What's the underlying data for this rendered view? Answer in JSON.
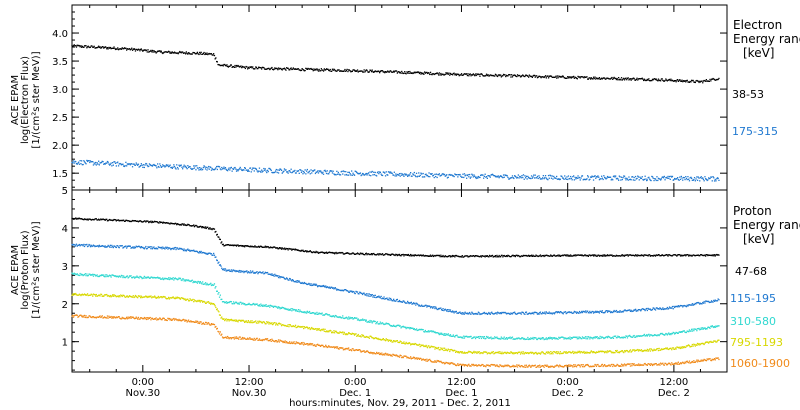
{
  "chart_data": {
    "type": "scatter",
    "x_label": "hours:minutes, Nov. 29, 2011 - Dec. 2, 2011",
    "x_range": [
      "2011-11-29T16:00",
      "2011-12-02T18:00"
    ],
    "x_ticks": [
      {
        "t": "2011-11-30T00:00",
        "time": "0:00",
        "date": "Nov.30"
      },
      {
        "t": "2011-11-30T12:00",
        "time": "12:00",
        "date": "Nov.30"
      },
      {
        "t": "2011-12-01T00:00",
        "time": "0:00",
        "date": "Dec. 1"
      },
      {
        "t": "2011-12-01T12:00",
        "time": "12:00",
        "date": "Dec. 1"
      },
      {
        "t": "2011-12-02T00:00",
        "time": "0:00",
        "date": "Dec. 2"
      },
      {
        "t": "2011-12-02T12:00",
        "time": "12:00",
        "date": "Dec. 2"
      }
    ],
    "panels": [
      {
        "id": "electron",
        "ylabel_lines": [
          "ACE EPAM",
          "log(Electron Flux)",
          "[1/(cm²s ster MeV)]"
        ],
        "ylim": [
          1.2,
          4.5
        ],
        "y_ticks": [
          "1.5",
          "2.0",
          "2.5",
          "3.0",
          "3.5",
          "4.0"
        ],
        "legend_title": [
          "Electron",
          "Energy ranges"
        ],
        "legend_unit": "[keV]",
        "series": [
          {
            "name": "38-53",
            "color": "#000000",
            "noise": 0.022,
            "points": [
              [
                "2011-11-29T16:00",
                3.77
              ],
              [
                "2011-11-29T22:00",
                3.72
              ],
              [
                "2011-11-30T02:00",
                3.66
              ],
              [
                "2011-11-30T06:00",
                3.64
              ],
              [
                "2011-11-30T08:00",
                3.62
              ],
              [
                "2011-11-30T08:30",
                3.43
              ],
              [
                "2011-11-30T12:00",
                3.38
              ],
              [
                "2011-11-30T18:00",
                3.35
              ],
              [
                "2011-12-01T00:00",
                3.33
              ],
              [
                "2011-12-01T12:00",
                3.26
              ],
              [
                "2011-12-02T00:00",
                3.21
              ],
              [
                "2011-12-02T10:00",
                3.17
              ],
              [
                "2011-12-02T15:00",
                3.13
              ],
              [
                "2011-12-02T17:00",
                3.19
              ]
            ]
          },
          {
            "name": "175-315",
            "color": "#1f78d0",
            "noise": 0.04,
            "points": [
              [
                "2011-11-29T16:00",
                1.7
              ],
              [
                "2011-11-30T06:00",
                1.6
              ],
              [
                "2011-11-30T12:00",
                1.56
              ],
              [
                "2011-12-01T00:00",
                1.5
              ],
              [
                "2011-12-01T12:00",
                1.45
              ],
              [
                "2011-12-02T00:00",
                1.42
              ],
              [
                "2011-12-02T17:00",
                1.4
              ]
            ]
          }
        ]
      },
      {
        "id": "proton",
        "ylabel_lines": [
          "ACE EPAM",
          "log(Proton Flux)",
          "[1/(cm²s ster MeV)]"
        ],
        "ylim": [
          0.2,
          5.0
        ],
        "y_ticks": [
          "1",
          "2",
          "3",
          "4",
          "5"
        ],
        "legend_title": [
          "Proton",
          "Energy ranges"
        ],
        "legend_unit": "[keV]",
        "series": [
          {
            "name": "47-68",
            "color": "#000000",
            "noise": 0.02,
            "points": [
              [
                "2011-11-29T16:00",
                4.25
              ],
              [
                "2011-11-30T02:00",
                4.15
              ],
              [
                "2011-11-30T06:00",
                4.05
              ],
              [
                "2011-11-30T08:00",
                3.97
              ],
              [
                "2011-11-30T09:00",
                3.55
              ],
              [
                "2011-11-30T14:00",
                3.5
              ],
              [
                "2011-11-30T20:00",
                3.35
              ],
              [
                "2011-12-01T06:00",
                3.28
              ],
              [
                "2011-12-01T12:00",
                3.25
              ],
              [
                "2011-12-02T00:00",
                3.27
              ],
              [
                "2011-12-02T17:00",
                3.28
              ]
            ]
          },
          {
            "name": "115-195",
            "color": "#1f78d0",
            "noise": 0.03,
            "points": [
              [
                "2011-11-29T16:00",
                3.55
              ],
              [
                "2011-11-30T04:00",
                3.45
              ],
              [
                "2011-11-30T08:00",
                3.3
              ],
              [
                "2011-11-30T09:00",
                2.9
              ],
              [
                "2011-11-30T14:00",
                2.8
              ],
              [
                "2011-11-30T18:00",
                2.55
              ],
              [
                "2011-12-01T00:00",
                2.3
              ],
              [
                "2011-12-01T12:00",
                1.75
              ],
              [
                "2011-12-01T20:00",
                1.75
              ],
              [
                "2011-12-02T06:00",
                1.8
              ],
              [
                "2011-12-02T12:00",
                1.9
              ],
              [
                "2011-12-02T17:00",
                2.1
              ]
            ]
          },
          {
            "name": "310-580",
            "color": "#30d8d0",
            "noise": 0.03,
            "points": [
              [
                "2011-11-29T16:00",
                2.78
              ],
              [
                "2011-11-30T04:00",
                2.65
              ],
              [
                "2011-11-30T08:00",
                2.5
              ],
              [
                "2011-11-30T09:00",
                2.05
              ],
              [
                "2011-11-30T14:00",
                1.95
              ],
              [
                "2011-11-30T18:00",
                1.8
              ],
              [
                "2011-12-01T00:00",
                1.6
              ],
              [
                "2011-12-01T12:00",
                1.12
              ],
              [
                "2011-12-01T20:00",
                1.08
              ],
              [
                "2011-12-02T06:00",
                1.12
              ],
              [
                "2011-12-02T12:00",
                1.22
              ],
              [
                "2011-12-02T17:00",
                1.42
              ]
            ]
          },
          {
            "name": "795-1193",
            "color": "#d8d800",
            "noise": 0.03,
            "points": [
              [
                "2011-11-29T16:00",
                2.25
              ],
              [
                "2011-11-30T04:00",
                2.15
              ],
              [
                "2011-11-30T08:00",
                2.0
              ],
              [
                "2011-11-30T09:00",
                1.58
              ],
              [
                "2011-11-30T14:00",
                1.5
              ],
              [
                "2011-11-30T18:00",
                1.38
              ],
              [
                "2011-12-01T00:00",
                1.18
              ],
              [
                "2011-12-01T12:00",
                0.72
              ],
              [
                "2011-12-01T20:00",
                0.7
              ],
              [
                "2011-12-02T06:00",
                0.74
              ],
              [
                "2011-12-02T12:00",
                0.82
              ],
              [
                "2011-12-02T17:00",
                1.02
              ]
            ]
          },
          {
            "name": "1060-1900",
            "color": "#f08a1a",
            "noise": 0.03,
            "points": [
              [
                "2011-11-29T16:00",
                1.68
              ],
              [
                "2011-11-30T04:00",
                1.58
              ],
              [
                "2011-11-30T08:00",
                1.45
              ],
              [
                "2011-11-30T09:00",
                1.12
              ],
              [
                "2011-11-30T14:00",
                1.05
              ],
              [
                "2011-11-30T18:00",
                0.95
              ],
              [
                "2011-12-01T00:00",
                0.78
              ],
              [
                "2011-12-01T12:00",
                0.38
              ],
              [
                "2011-12-01T20:00",
                0.35
              ],
              [
                "2011-12-02T06:00",
                0.38
              ],
              [
                "2011-12-02T12:00",
                0.42
              ],
              [
                "2011-12-02T17:00",
                0.55
              ]
            ]
          }
        ]
      }
    ]
  }
}
